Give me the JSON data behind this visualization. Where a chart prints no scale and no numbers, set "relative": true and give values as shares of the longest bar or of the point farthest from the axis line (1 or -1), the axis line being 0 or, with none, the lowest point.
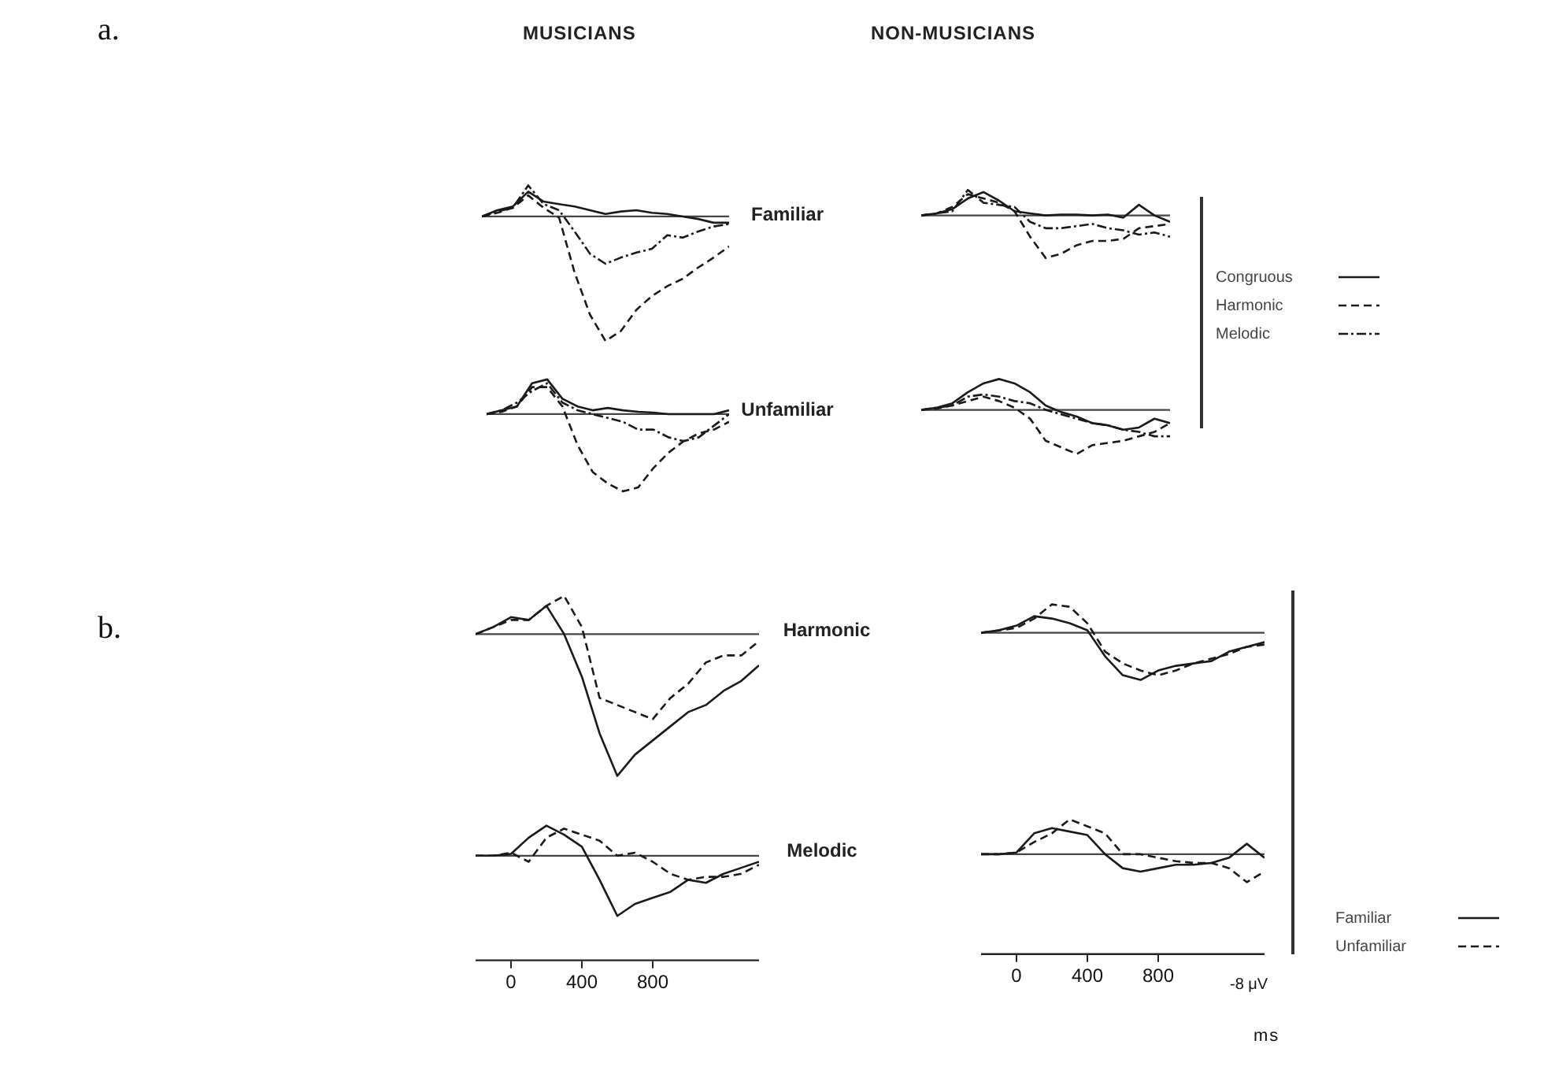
{
  "chart_data": [
    {
      "type": "line",
      "title": "MUSICIANS",
      "annotations": [
        "a."
      ],
      "relative": true,
      "tick_labels": false,
      "categories": [
        null,
        null,
        null,
        null,
        null,
        null,
        null,
        null,
        null,
        null,
        null,
        null,
        null,
        null,
        null,
        null,
        null
      ],
      "series": [
        {
          "color": "#1a1a1a",
          "line_style": "solid",
          "values": [
            0,
            0.05,
            0.08,
            0.2,
            0.12,
            0.1,
            0.08,
            0.05,
            0.02,
            0.04,
            0.05,
            0.03,
            0.02,
            0,
            -0.02,
            -0.05,
            -0.05
          ]
        },
        {
          "color": "#1a1a1a",
          "line_style": "dashed",
          "values": [
            0,
            0.03,
            0.07,
            0.17,
            0.07,
            -0.01,
            -0.45,
            -0.79,
            -1.0,
            -0.92,
            -0.75,
            -0.64,
            -0.56,
            -0.5,
            -0.41,
            -0.33,
            -0.24
          ]
        },
        {
          "color": "#1a1a1a",
          "line_style": "dotted",
          "values": [
            0,
            0.04,
            0.07,
            0.25,
            0.1,
            0.05,
            -0.12,
            -0.3,
            -0.38,
            -0.33,
            -0.29,
            -0.26,
            -0.15,
            -0.17,
            -0.12,
            -0.08,
            -0.06
          ]
        }
      ]
    },
    {
      "type": "line",
      "title": "NON-MUSICIANS",
      "legend": "right",
      "relative": true,
      "tick_labels": false,
      "categories": [
        null,
        null,
        null,
        null,
        null,
        null,
        null,
        null,
        null,
        null,
        null,
        null,
        null,
        null,
        null,
        null,
        null
      ],
      "series": [
        {
          "name": "Congruous",
          "color": "#1a1a1a",
          "line_style": "solid",
          "values": [
            0,
            0.05,
            0.15,
            0.4,
            0.55,
            0.35,
            0.1,
            0.05,
            0,
            0.02,
            0.02,
            0,
            0.02,
            -0.05,
            0.25,
            0,
            -0.15
          ]
        },
        {
          "name": "Harmonic",
          "color": "#1a1a1a",
          "line_style": "dashed",
          "values": [
            0,
            0.05,
            0.2,
            0.5,
            0.4,
            0.3,
            0.1,
            -0.5,
            -1.0,
            -0.9,
            -0.7,
            -0.6,
            -0.6,
            -0.55,
            -0.3,
            -0.25,
            -0.2
          ]
        },
        {
          "name": "Melodic",
          "color": "#1a1a1a",
          "line_style": "dotted",
          "values": [
            0,
            0.05,
            0.1,
            0.6,
            0.3,
            0.25,
            0.2,
            -0.15,
            -0.3,
            -0.3,
            -0.25,
            -0.2,
            -0.3,
            -0.35,
            -0.45,
            -0.4,
            -0.5
          ]
        }
      ]
    },
    {
      "type": "line",
      "relative": true,
      "tick_labels": false,
      "categories": [
        null,
        null,
        null,
        null,
        null,
        null,
        null,
        null,
        null,
        null,
        null,
        null,
        null,
        null,
        null,
        null,
        null
      ],
      "series": [
        {
          "color": "#1a1a1a",
          "line_style": "solid",
          "values": [
            0,
            0.05,
            0.1,
            0.4,
            0.45,
            0.2,
            0.1,
            0.05,
            0.08,
            0.05,
            0.03,
            0.02,
            0,
            0,
            0,
            0,
            0.05
          ]
        },
        {
          "color": "#1a1a1a",
          "line_style": "dashed",
          "values": [
            0,
            0.03,
            0.1,
            0.35,
            0.35,
            0.1,
            -0.4,
            -0.75,
            -0.9,
            -1.0,
            -0.95,
            -0.7,
            -0.5,
            -0.35,
            -0.25,
            -0.2,
            -0.1
          ]
        },
        {
          "color": "#1a1a1a",
          "line_style": "dotted",
          "values": [
            0,
            0.05,
            0.15,
            0.3,
            0.4,
            0.15,
            0.05,
            0,
            -0.05,
            -0.1,
            -0.2,
            -0.2,
            -0.3,
            -0.35,
            -0.3,
            -0.15,
            0
          ]
        }
      ]
    },
    {
      "type": "line",
      "relative": true,
      "tick_labels": false,
      "categories": [
        null,
        null,
        null,
        null,
        null,
        null,
        null,
        null,
        null,
        null,
        null,
        null,
        null,
        null,
        null,
        null,
        null
      ],
      "series": [
        {
          "color": "#1a1a1a",
          "line_style": "solid",
          "values": [
            0,
            0.05,
            0.15,
            0.4,
            0.6,
            0.7,
            0.6,
            0.4,
            0.1,
            -0.05,
            -0.15,
            -0.3,
            -0.35,
            -0.45,
            -0.4,
            -0.2,
            -0.3
          ]
        },
        {
          "color": "#1a1a1a",
          "line_style": "dashed",
          "values": [
            0,
            0.03,
            0.1,
            0.2,
            0.3,
            0.2,
            0.05,
            -0.2,
            -0.7,
            -0.85,
            -1.0,
            -0.8,
            -0.75,
            -0.7,
            -0.6,
            -0.5,
            -0.3
          ]
        },
        {
          "color": "#1a1a1a",
          "line_style": "dotted",
          "values": [
            0,
            0.05,
            0.1,
            0.3,
            0.35,
            0.3,
            0.2,
            0.15,
            0,
            -0.1,
            -0.2,
            -0.3,
            -0.35,
            -0.45,
            -0.5,
            -0.6,
            -0.6
          ]
        }
      ]
    },
    {
      "type": "line",
      "annotations": [
        "b."
      ],
      "relative": true,
      "tick_labels": false,
      "categories": [
        null,
        null,
        null,
        null,
        null,
        null,
        null,
        null,
        null,
        null,
        null,
        null,
        null,
        null,
        null,
        null,
        null
      ],
      "series": [
        {
          "color": "#1a1a1a",
          "line_style": "solid",
          "values": [
            0,
            0.05,
            0.12,
            0.1,
            0.2,
            0,
            -0.3,
            -0.7,
            -1.0,
            -0.85,
            -0.75,
            -0.65,
            -0.55,
            -0.5,
            -0.4,
            -0.33,
            -0.22
          ]
        },
        {
          "color": "#1a1a1a",
          "line_style": "dashed",
          "values": [
            0,
            0.05,
            0.1,
            0.1,
            0.2,
            0.27,
            0.05,
            -0.45,
            -0.5,
            -0.55,
            -0.6,
            -0.45,
            -0.35,
            -0.2,
            -0.15,
            -0.15,
            -0.05
          ]
        }
      ]
    },
    {
      "type": "line",
      "legend": "right",
      "relative": true,
      "tick_labels": false,
      "categories": [
        null,
        null,
        null,
        null,
        null,
        null,
        null,
        null,
        null,
        null,
        null,
        null,
        null,
        null,
        null,
        null,
        null
      ],
      "series": [
        {
          "name": "Familiar",
          "color": "#1a1a1a",
          "line_style": "solid",
          "values": [
            0,
            0.05,
            0.15,
            0.35,
            0.3,
            0.2,
            0.05,
            -0.5,
            -0.9,
            -1.0,
            -0.8,
            -0.7,
            -0.65,
            -0.6,
            -0.4,
            -0.3,
            -0.2
          ]
        },
        {
          "name": "Unfamiliar",
          "color": "#1a1a1a",
          "line_style": "dashed",
          "values": [
            0,
            0.05,
            0.1,
            0.3,
            0.6,
            0.55,
            0.2,
            -0.4,
            -0.65,
            -0.8,
            -0.9,
            -0.8,
            -0.65,
            -0.55,
            -0.45,
            -0.3,
            -0.25
          ]
        }
      ]
    },
    {
      "type": "line",
      "relative": true,
      "tick_labels": "x",
      "xlim": [
        -200,
        1400
      ],
      "xticks": [
        0,
        400,
        800
      ],
      "x": [
        -200,
        -100,
        0,
        100,
        200,
        300,
        400,
        500,
        600,
        700,
        800,
        900,
        1000,
        1100,
        1200,
        1300,
        1400
      ],
      "series": [
        {
          "color": "#1a1a1a",
          "line_style": "solid",
          "values": [
            0,
            0,
            0.03,
            0.3,
            0.5,
            0.35,
            0.15,
            -0.4,
            -1.0,
            -0.8,
            -0.7,
            -0.6,
            -0.4,
            -0.45,
            -0.3,
            -0.2,
            -0.1
          ]
        },
        {
          "color": "#1a1a1a",
          "line_style": "dashed",
          "values": [
            0,
            0,
            0.05,
            -0.1,
            0.3,
            0.45,
            0.35,
            0.25,
            0,
            0.05,
            -0.1,
            -0.3,
            -0.4,
            -0.35,
            -0.35,
            -0.3,
            -0.15
          ]
        }
      ]
    },
    {
      "type": "line",
      "xlabel": "ms",
      "annotations": [
        "-8 μV"
      ],
      "relative": true,
      "tick_labels": "x",
      "xlim": [
        -200,
        1400
      ],
      "xticks": [
        0,
        400,
        800
      ],
      "x": [
        -200,
        -100,
        0,
        100,
        200,
        300,
        400,
        500,
        600,
        700,
        800,
        900,
        1000,
        1100,
        1200,
        1300,
        1400
      ],
      "series": [
        {
          "color": "#1a1a1a",
          "line_style": "solid",
          "values": [
            0,
            0,
            0.05,
            0.6,
            0.75,
            0.65,
            0.55,
            0,
            -0.4,
            -0.5,
            -0.4,
            -0.3,
            -0.3,
            -0.25,
            -0.1,
            0.3,
            -0.1
          ]
        },
        {
          "color": "#1a1a1a",
          "line_style": "dashed",
          "values": [
            0,
            0,
            0.05,
            0.35,
            0.6,
            1.0,
            0.8,
            0.6,
            0,
            0,
            -0.1,
            -0.2,
            -0.25,
            -0.25,
            -0.4,
            -0.8,
            -0.5
          ]
        }
      ]
    },
    {
      "type": "other",
      "annotations": [
        "Familiar",
        "Unfamiliar",
        "Harmonic",
        "Melodic"
      ]
    }
  ]
}
